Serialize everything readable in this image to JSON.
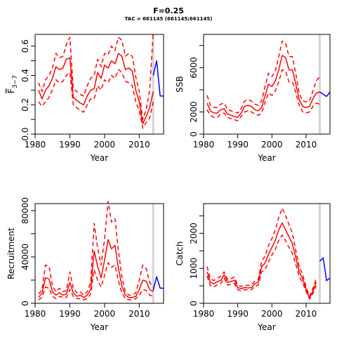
{
  "title": "F=0.25",
  "subtitle": "TAC = 661145 (661145;661145)",
  "colors": {
    "estimate": "#ff0000",
    "projection": "#0000ff",
    "current_year_marker": "#d3d3d3"
  },
  "chart_data": [
    {
      "id": "fbar",
      "type": "line",
      "xlabel": "Year",
      "ylabel": "F 3-7",
      "ylabel_main": "F",
      "ylabel_sub": "3−7",
      "xlim": [
        1980,
        2017
      ],
      "ylim": [
        0,
        0.68
      ],
      "xticks": [
        1980,
        1990,
        2000,
        2010
      ],
      "yticks": [
        0.0,
        0.2,
        0.4,
        0.6
      ],
      "ytick_labels": [
        "0.0",
        "0.2",
        "0.4",
        "0.6"
      ],
      "yticks_minor": [
        0.1,
        0.3,
        0.5
      ],
      "current_year": 2014,
      "grid": false,
      "legend": "none",
      "series": [
        {
          "role": "estimate",
          "style": "solid",
          "x": [
            1981,
            1982,
            1983,
            1984,
            1985,
            1986,
            1987,
            1988,
            1989,
            1990,
            1991,
            1992,
            1993,
            1994,
            1995,
            1996,
            1997,
            1998,
            1999,
            2000,
            2001,
            2002,
            2003,
            2004,
            2005,
            2006,
            2007,
            2008,
            2009,
            2010,
            2011,
            2012,
            2013,
            2014
          ],
          "y": [
            0.3,
            0.24,
            0.3,
            0.33,
            0.38,
            0.46,
            0.44,
            0.45,
            0.51,
            0.52,
            0.25,
            0.23,
            0.21,
            0.2,
            0.26,
            0.3,
            0.31,
            0.42,
            0.38,
            0.47,
            0.45,
            0.5,
            0.48,
            0.55,
            0.53,
            0.44,
            0.45,
            0.43,
            0.3,
            0.22,
            0.07,
            0.12,
            0.18,
            0.29
          ]
        },
        {
          "role": "upper",
          "style": "dashed",
          "x": [
            1981,
            1982,
            1983,
            1984,
            1985,
            1986,
            1987,
            1988,
            1989,
            1990,
            1991,
            1992,
            1993,
            1994,
            1995,
            1996,
            1997,
            1998,
            1999,
            2000,
            2001,
            2002,
            2003,
            2004,
            2005,
            2006,
            2007,
            2008,
            2009,
            2010,
            2011,
            2012,
            2013,
            2014
          ],
          "y": [
            0.35,
            0.29,
            0.37,
            0.4,
            0.45,
            0.55,
            0.52,
            0.53,
            0.61,
            0.66,
            0.31,
            0.29,
            0.27,
            0.26,
            0.33,
            0.38,
            0.4,
            0.51,
            0.46,
            0.55,
            0.54,
            0.6,
            0.57,
            0.66,
            0.64,
            0.53,
            0.55,
            0.53,
            0.39,
            0.29,
            0.1,
            0.17,
            0.3,
            0.69
          ]
        },
        {
          "role": "lower",
          "style": "dashed",
          "x": [
            1981,
            1982,
            1983,
            1984,
            1985,
            1986,
            1987,
            1988,
            1989,
            1990,
            1991,
            1992,
            1993,
            1994,
            1995,
            1996,
            1997,
            1998,
            1999,
            2000,
            2001,
            2002,
            2003,
            2004,
            2005,
            2006,
            2007,
            2008,
            2009,
            2010,
            2011,
            2012,
            2013,
            2014
          ],
          "y": [
            0.22,
            0.19,
            0.22,
            0.25,
            0.3,
            0.37,
            0.35,
            0.36,
            0.4,
            0.42,
            0.2,
            0.18,
            0.16,
            0.15,
            0.2,
            0.24,
            0.24,
            0.33,
            0.3,
            0.37,
            0.35,
            0.4,
            0.38,
            0.44,
            0.42,
            0.36,
            0.35,
            0.33,
            0.22,
            0.16,
            0.04,
            0.08,
            0.11,
            0.22
          ]
        },
        {
          "role": "projection",
          "style": "solid",
          "x": [
            2014,
            2015,
            2016,
            2017
          ],
          "y": [
            0.4,
            0.5,
            0.26,
            0.26
          ]
        }
      ]
    },
    {
      "id": "ssb",
      "type": "line",
      "xlabel": "Year",
      "ylabel": "SSB",
      "xlim": [
        1980,
        2017
      ],
      "ylim": [
        0,
        9000
      ],
      "xticks": [
        1980,
        1990,
        2000,
        2010
      ],
      "yticks": [
        0,
        2000,
        6000
      ],
      "ytick_labels": [
        "0",
        "2000",
        "6000"
      ],
      "yticks_minor": [
        4000,
        8000
      ],
      "current_year": 2014,
      "grid": false,
      "legend": "none",
      "series": [
        {
          "role": "estimate",
          "style": "solid",
          "x": [
            1981,
            1982,
            1983,
            1984,
            1985,
            1986,
            1987,
            1988,
            1989,
            1990,
            1991,
            1992,
            1993,
            1994,
            1995,
            1996,
            1997,
            1998,
            1999,
            2000,
            2001,
            2002,
            2003,
            2004,
            2005,
            2006,
            2007,
            2008,
            2009,
            2010,
            2011,
            2012,
            2013,
            2014
          ],
          "y": [
            2800,
            2100,
            1900,
            1900,
            2200,
            2300,
            1800,
            1700,
            1600,
            1500,
            1900,
            2500,
            2600,
            2500,
            2200,
            2100,
            2400,
            3500,
            4500,
            4300,
            4800,
            5800,
            7100,
            6900,
            5800,
            5800,
            4500,
            3100,
            2500,
            2400,
            2500,
            3200,
            3700,
            3800
          ]
        },
        {
          "role": "upper",
          "style": "dashed",
          "x": [
            1981,
            1982,
            1983,
            1984,
            1985,
            1986,
            1987,
            1988,
            1989,
            1990,
            1991,
            1992,
            1993,
            1994,
            1995,
            1996,
            1997,
            1998,
            1999,
            2000,
            2001,
            2002,
            2003,
            2004,
            2005,
            2006,
            2007,
            2008,
            2009,
            2010,
            2011,
            2012,
            2013,
            2014
          ],
          "y": [
            3500,
            2600,
            2400,
            2400,
            2700,
            2800,
            2200,
            2100,
            2000,
            1900,
            2300,
            3000,
            3100,
            3000,
            2700,
            2600,
            3000,
            4300,
            5500,
            5200,
            5700,
            7000,
            8400,
            8200,
            7000,
            7000,
            5400,
            3700,
            3000,
            2900,
            3000,
            3900,
            4800,
            5200
          ]
        },
        {
          "role": "lower",
          "style": "dashed",
          "x": [
            1981,
            1982,
            1983,
            1984,
            1985,
            1986,
            1987,
            1988,
            1989,
            1990,
            1991,
            1992,
            1993,
            1994,
            1995,
            1996,
            1997,
            1998,
            1999,
            2000,
            2001,
            2002,
            2003,
            2004,
            2005,
            2006,
            2007,
            2008,
            2009,
            2010,
            2011,
            2012,
            2013,
            2014
          ],
          "y": [
            2200,
            1700,
            1500,
            1500,
            1800,
            1900,
            1500,
            1400,
            1300,
            1200,
            1600,
            2000,
            2100,
            2000,
            1800,
            1700,
            1900,
            2900,
            3700,
            3500,
            3900,
            4700,
            5800,
            5700,
            4700,
            4700,
            3700,
            2600,
            2000,
            1900,
            2000,
            2500,
            2800,
            2700
          ]
        },
        {
          "role": "projection",
          "style": "solid",
          "x": [
            2014,
            2015,
            2016,
            2017
          ],
          "y": [
            3800,
            3600,
            3400,
            3800
          ]
        }
      ]
    },
    {
      "id": "recruitment",
      "type": "line",
      "xlabel": "Year",
      "ylabel": "Recruitment",
      "xlim": [
        1980,
        2017
      ],
      "ylim": [
        0,
        86000
      ],
      "xticks": [
        1980,
        1990,
        2000,
        2010
      ],
      "yticks": [
        0,
        40000,
        80000
      ],
      "ytick_labels": [
        "0",
        "40000",
        "80000"
      ],
      "yticks_minor": [
        20000,
        60000
      ],
      "current_year": 2014,
      "grid": false,
      "legend": "none",
      "series": [
        {
          "role": "estimate",
          "style": "solid",
          "x": [
            1981,
            1982,
            1983,
            1984,
            1985,
            1986,
            1987,
            1988,
            1989,
            1990,
            1991,
            1992,
            1993,
            1994,
            1995,
            1996,
            1997,
            1998,
            1999,
            2000,
            2001,
            2002,
            2003,
            2004,
            2005,
            2006,
            2007,
            2008,
            2009,
            2010,
            2011,
            2012,
            2013,
            2014
          ],
          "y": [
            5000,
            9000,
            22000,
            21000,
            10000,
            7000,
            9000,
            7000,
            8000,
            18000,
            9000,
            6000,
            7000,
            5000,
            7000,
            12000,
            45000,
            32000,
            22000,
            37000,
            55000,
            47000,
            50000,
            30000,
            15000,
            7000,
            5000,
            5000,
            6000,
            12000,
            20000,
            19000,
            12000,
            10000
          ]
        },
        {
          "role": "upper",
          "style": "dashed",
          "x": [
            1981,
            1982,
            1983,
            1984,
            1985,
            1986,
            1987,
            1988,
            1989,
            1990,
            1991,
            1992,
            1993,
            1994,
            1995,
            1996,
            1997,
            1998,
            1999,
            2000,
            2001,
            2002,
            2003,
            2004,
            2005,
            2006,
            2007,
            2008,
            2009,
            2010,
            2011,
            2012,
            2013,
            2014
          ],
          "y": [
            8000,
            12000,
            33000,
            32000,
            15000,
            10000,
            13000,
            10000,
            11000,
            27000,
            13000,
            9000,
            10000,
            7000,
            10000,
            18000,
            69000,
            48000,
            33000,
            55000,
            88000,
            70000,
            73000,
            45000,
            23000,
            10000,
            7000,
            7000,
            9000,
            20000,
            33000,
            30000,
            18000,
            14000
          ]
        },
        {
          "role": "lower",
          "style": "dashed",
          "x": [
            1981,
            1982,
            1983,
            1984,
            1985,
            1986,
            1987,
            1988,
            1989,
            1990,
            1991,
            1992,
            1993,
            1994,
            1995,
            1996,
            1997,
            1998,
            1999,
            2000,
            2001,
            2002,
            2003,
            2004,
            2005,
            2006,
            2007,
            2008,
            2009,
            2010,
            2011,
            2012,
            2013,
            2014
          ],
          "y": [
            3000,
            5000,
            14000,
            13000,
            6000,
            4000,
            6000,
            5000,
            5000,
            12000,
            6000,
            4000,
            4000,
            3000,
            4000,
            8000,
            29000,
            20000,
            14000,
            24000,
            35000,
            31000,
            33000,
            19000,
            9000,
            4000,
            3000,
            3000,
            4000,
            7000,
            12000,
            11000,
            7000,
            6000
          ]
        },
        {
          "role": "projection",
          "style": "solid",
          "x": [
            2014,
            2015,
            2016,
            2017
          ],
          "y": [
            11000,
            23000,
            13000,
            13000
          ]
        }
      ]
    },
    {
      "id": "catch",
      "type": "line",
      "xlabel": "Year",
      "ylabel": "Catch",
      "xlim": [
        1980,
        2017
      ],
      "ylim": [
        0,
        2850
      ],
      "xticks": [
        1980,
        1990,
        2000,
        2010
      ],
      "yticks": [
        0,
        1000,
        2000
      ],
      "ytick_labels": [
        "0",
        "1000",
        "2000"
      ],
      "yticks_minor": [
        500,
        1500,
        2500
      ],
      "current_year": 2014,
      "grid": false,
      "legend": "none",
      "series": [
        {
          "role": "estimate",
          "style": "solid",
          "x": [
            1981,
            1982,
            1983,
            1984,
            1985,
            1986,
            1987,
            1988,
            1989,
            1990,
            1991,
            1992,
            1993,
            1994,
            1995,
            1996,
            1997,
            1998,
            1999,
            2000,
            2001,
            2002,
            2003,
            2004,
            2005,
            2006,
            2007,
            2008,
            2009,
            2010,
            2011,
            2012,
            2013
          ],
          "y": [
            900,
            600,
            560,
            620,
            650,
            820,
            600,
            620,
            660,
            450,
            420,
            450,
            440,
            450,
            560,
            600,
            1050,
            1150,
            1400,
            1600,
            1800,
            2100,
            2300,
            2100,
            1900,
            1700,
            1300,
            900,
            700,
            400,
            150,
            350,
            600
          ]
        },
        {
          "role": "upper",
          "style": "dashed",
          "x": [
            1981,
            1982,
            1983,
            1984,
            1985,
            1986,
            1987,
            1988,
            1989,
            1990,
            1991,
            1992,
            1993,
            1994,
            1995,
            1996,
            1997,
            1998,
            1999,
            2000,
            2001,
            2002,
            2003,
            2004,
            2005,
            2006,
            2007,
            2008,
            2009,
            2010,
            2011,
            2012,
            2013
          ],
          "y": [
            1050,
            700,
            650,
            720,
            760,
            900,
            680,
            700,
            750,
            520,
            480,
            520,
            510,
            520,
            630,
            680,
            1200,
            1350,
            1650,
            1850,
            2100,
            2450,
            2720,
            2500,
            2250,
            2000,
            1500,
            1050,
            820,
            480,
            200,
            430,
            700
          ]
        },
        {
          "role": "lower",
          "style": "dashed",
          "x": [
            1981,
            1982,
            1983,
            1984,
            1985,
            1986,
            1987,
            1988,
            1989,
            1990,
            1991,
            1992,
            1993,
            1994,
            1995,
            1996,
            1997,
            1998,
            1999,
            2000,
            2001,
            2002,
            2003,
            2004,
            2005,
            2006,
            2007,
            2008,
            2009,
            2010,
            2011,
            2012,
            2013
          ],
          "y": [
            780,
            500,
            470,
            530,
            560,
            720,
            520,
            540,
            570,
            390,
            360,
            390,
            380,
            390,
            490,
            520,
            900,
            970,
            1180,
            1380,
            1540,
            1800,
            1950,
            1780,
            1600,
            1420,
            1100,
            760,
            590,
            340,
            120,
            280,
            500
          ]
        },
        {
          "role": "projection",
          "style": "solid",
          "x": [
            2014,
            2015,
            2016,
            2017
          ],
          "y": [
            1200,
            1300,
            650,
            720
          ]
        }
      ]
    }
  ]
}
